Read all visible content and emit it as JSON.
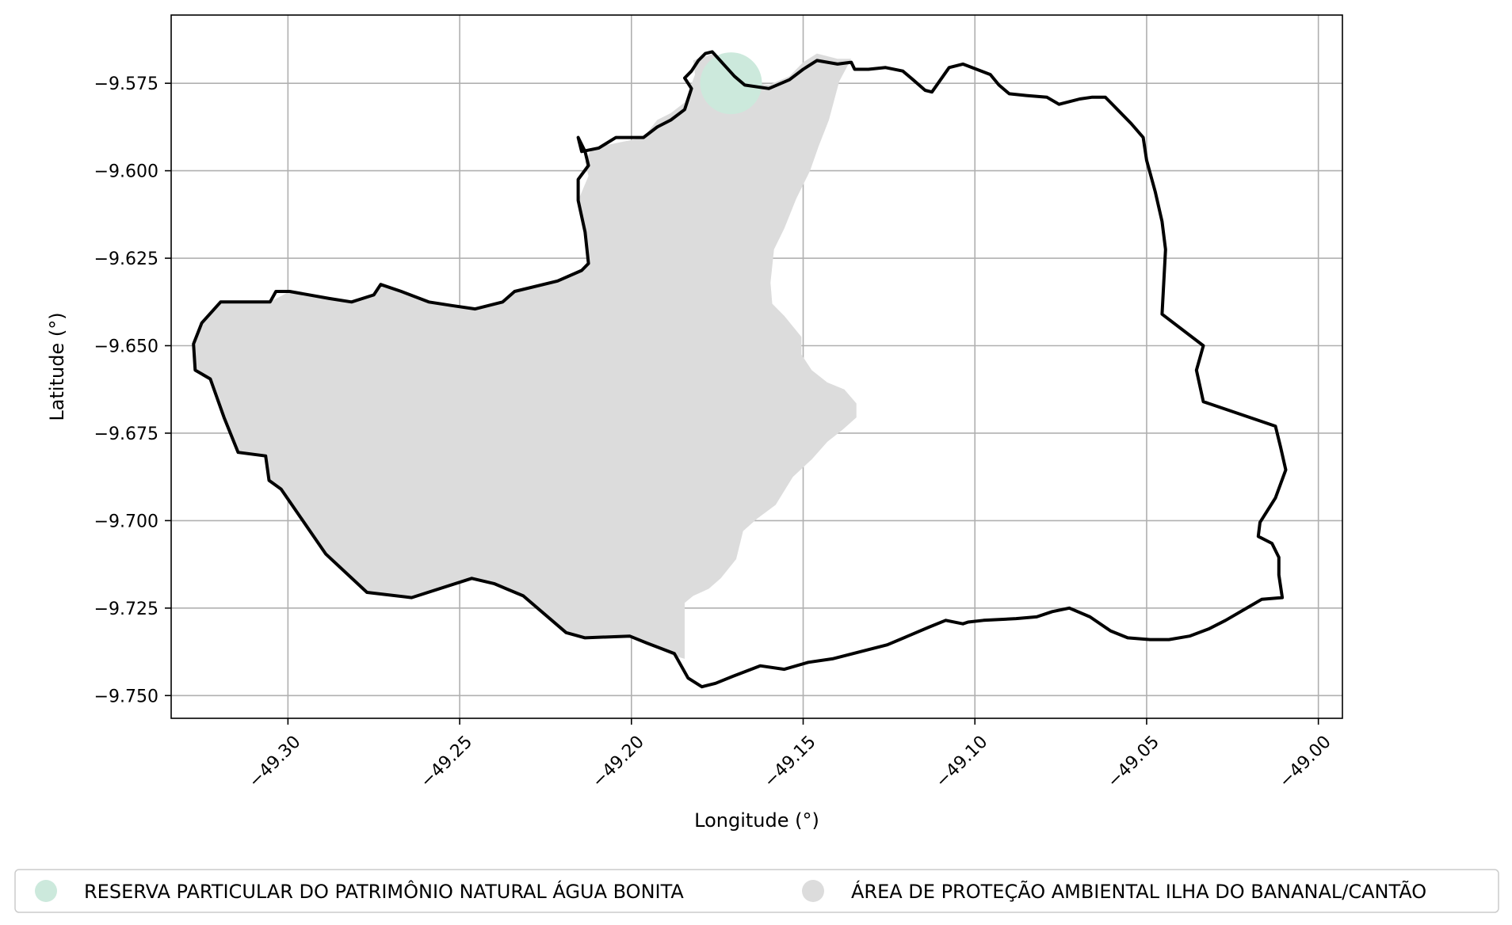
{
  "chart_data": {
    "type": "map",
    "xlabel": "Longitude (°)",
    "ylabel": "Latitude (°)",
    "xlim": [
      -49.334,
      -48.993
    ],
    "ylim": [
      -9.7565,
      -9.5555
    ],
    "grid": true,
    "xticks": [
      {
        "value": -49.3,
        "label": "−49.30"
      },
      {
        "value": -49.25,
        "label": "−49.25"
      },
      {
        "value": -49.2,
        "label": "−49.20"
      },
      {
        "value": -49.15,
        "label": "−49.15"
      },
      {
        "value": -49.1,
        "label": "−49.10"
      },
      {
        "value": -49.05,
        "label": "−49.05"
      },
      {
        "value": -49.0,
        "label": "−49.00"
      }
    ],
    "yticks": [
      {
        "value": -9.575,
        "label": "−9.575"
      },
      {
        "value": -9.6,
        "label": "−9.600"
      },
      {
        "value": -9.625,
        "label": "−9.625"
      },
      {
        "value": -9.65,
        "label": "−9.650"
      },
      {
        "value": -9.675,
        "label": "−9.675"
      },
      {
        "value": -9.7,
        "label": "−9.700"
      },
      {
        "value": -9.725,
        "label": "−9.725"
      },
      {
        "value": -9.75,
        "label": "−9.750"
      }
    ],
    "legend_position": "bottom",
    "layers": [
      {
        "name": "RESERVA PARTICULAR DO PATRIMÔNIO NATURAL ÁGUA BONITA",
        "kind": "point",
        "color": "#cce9dc",
        "center": [
          -49.171,
          -9.575
        ],
        "radius_deg": 0.009
      },
      {
        "name": "ÁREA DE PROTEÇÃO AMBIENTAL ILHA DO BANANAL/CANTÃO",
        "kind": "area",
        "color": "#dcdcdc",
        "coords": [
          [
            -49.176,
            -9.5665
          ],
          [
            -49.167,
            -9.5745
          ],
          [
            -49.16,
            -9.5755
          ],
          [
            -49.154,
            -9.573
          ],
          [
            -49.15,
            -9.569
          ],
          [
            -49.146,
            -9.5665
          ],
          [
            -49.14,
            -9.568
          ],
          [
            -49.136,
            -9.568
          ],
          [
            -49.1395,
            -9.5745
          ],
          [
            -49.1425,
            -9.5855
          ],
          [
            -49.1455,
            -9.593
          ],
          [
            -49.148,
            -9.6
          ],
          [
            -49.152,
            -9.608
          ],
          [
            -49.1555,
            -9.6165
          ],
          [
            -49.1585,
            -9.6225
          ],
          [
            -49.1595,
            -9.632
          ],
          [
            -49.159,
            -9.638
          ],
          [
            -49.1555,
            -9.6415
          ],
          [
            -49.1505,
            -9.6475
          ],
          [
            -49.1505,
            -9.6525
          ],
          [
            -49.1475,
            -9.657
          ],
          [
            -49.143,
            -9.6605
          ],
          [
            -49.138,
            -9.6625
          ],
          [
            -49.1345,
            -9.6665
          ],
          [
            -49.1345,
            -9.6705
          ],
          [
            -49.1385,
            -9.674
          ],
          [
            -49.143,
            -9.6775
          ],
          [
            -49.1475,
            -9.6825
          ],
          [
            -49.153,
            -9.6875
          ],
          [
            -49.158,
            -9.6955
          ],
          [
            -49.1635,
            -9.6995
          ],
          [
            -49.1675,
            -9.703
          ],
          [
            -49.1695,
            -9.711
          ],
          [
            -49.174,
            -9.7165
          ],
          [
            -49.1775,
            -9.7195
          ],
          [
            -49.182,
            -9.7215
          ],
          [
            -49.1845,
            -9.7235
          ],
          [
            -49.1845,
            -9.7295
          ],
          [
            -49.1845,
            -9.7395
          ],
          [
            -49.188,
            -9.7385
          ],
          [
            -49.2005,
            -9.733
          ],
          [
            -49.2135,
            -9.7335
          ],
          [
            -49.219,
            -9.732
          ],
          [
            -49.2315,
            -9.7215
          ],
          [
            -49.24,
            -9.718
          ],
          [
            -49.2465,
            -9.7165
          ],
          [
            -49.264,
            -9.722
          ],
          [
            -49.277,
            -9.7205
          ],
          [
            -49.289,
            -9.7095
          ],
          [
            -49.302,
            -9.691
          ],
          [
            -49.3055,
            -9.6885
          ],
          [
            -49.3065,
            -9.6815
          ],
          [
            -49.3145,
            -9.6805
          ],
          [
            -49.3186,
            -9.6705
          ],
          [
            -49.3226,
            -9.6595
          ],
          [
            -49.327,
            -9.657
          ],
          [
            -49.3275,
            -9.6495
          ],
          [
            -49.3251,
            -9.6435
          ],
          [
            -49.3196,
            -9.6375
          ],
          [
            -49.3052,
            -9.6375
          ],
          [
            -49.2995,
            -9.6345
          ],
          [
            -49.288,
            -9.6365
          ],
          [
            -49.2815,
            -9.6375
          ],
          [
            -49.275,
            -9.6355
          ],
          [
            -49.273,
            -9.6325
          ],
          [
            -49.267,
            -9.6345
          ],
          [
            -49.259,
            -9.6375
          ],
          [
            -49.2525,
            -9.6385
          ],
          [
            -49.2455,
            -9.6395
          ],
          [
            -49.2375,
            -9.6375
          ],
          [
            -49.234,
            -9.6345
          ],
          [
            -49.2215,
            -9.6315
          ],
          [
            -49.2145,
            -9.6285
          ],
          [
            -49.2125,
            -9.6265
          ],
          [
            -49.2135,
            -9.6175
          ],
          [
            -49.2155,
            -9.6085
          ],
          [
            -49.2125,
            -9.6015
          ],
          [
            -49.2135,
            -9.5975
          ],
          [
            -49.2115,
            -9.5935
          ],
          [
            -49.1965,
            -9.5905
          ],
          [
            -49.1925,
            -9.5855
          ],
          [
            -49.1885,
            -9.5835
          ],
          [
            -49.1845,
            -9.5805
          ],
          [
            -49.1815,
            -9.5725
          ],
          [
            -49.182,
            -9.5685
          ]
        ]
      }
    ],
    "boundary": {
      "kind": "outline",
      "color": "#000000",
      "coords": [
        [
          -49.176,
          -9.5665
        ],
        [
          -49.17,
          -9.573
        ],
        [
          -49.167,
          -9.5755
        ],
        [
          -49.16,
          -9.5765
        ],
        [
          -49.154,
          -9.574
        ],
        [
          -49.15,
          -9.571
        ],
        [
          -49.146,
          -9.5685
        ],
        [
          -49.14,
          -9.5695
        ],
        [
          -49.136,
          -9.569
        ],
        [
          -49.135,
          -9.571
        ],
        [
          -49.131,
          -9.571
        ],
        [
          -49.126,
          -9.5705
        ],
        [
          -49.121,
          -9.5715
        ],
        [
          -49.118,
          -9.574
        ],
        [
          -49.1145,
          -9.577
        ],
        [
          -49.1125,
          -9.5775
        ],
        [
          -49.1075,
          -9.5705
        ],
        [
          -49.1035,
          -9.5695
        ],
        [
          -49.0995,
          -9.571
        ],
        [
          -49.0955,
          -9.5725
        ],
        [
          -49.093,
          -9.5755
        ],
        [
          -49.09,
          -9.578
        ],
        [
          -49.085,
          -9.5785
        ],
        [
          -49.079,
          -9.579
        ],
        [
          -49.0755,
          -9.581
        ],
        [
          -49.0695,
          -9.5795
        ],
        [
          -49.066,
          -9.579
        ],
        [
          -49.062,
          -9.579
        ],
        [
          -49.0585,
          -9.5825
        ],
        [
          -49.0545,
          -9.5865
        ],
        [
          -49.051,
          -9.5905
        ],
        [
          -49.05,
          -9.597
        ],
        [
          -49.0475,
          -9.606
        ],
        [
          -49.0455,
          -9.6145
        ],
        [
          -49.0445,
          -9.6225
        ],
        [
          -49.0455,
          -9.641
        ],
        [
          -49.0335,
          -9.65
        ],
        [
          -49.0355,
          -9.657
        ],
        [
          -49.0335,
          -9.666
        ],
        [
          -49.0125,
          -9.673
        ],
        [
          -49.011,
          -9.679
        ],
        [
          -49.0095,
          -9.6855
        ],
        [
          -49.0125,
          -9.6935
        ],
        [
          -49.017,
          -9.7005
        ],
        [
          -49.0175,
          -9.7045
        ],
        [
          -49.0135,
          -9.7065
        ],
        [
          -49.0115,
          -9.7105
        ],
        [
          -49.0115,
          -9.7155
        ],
        [
          -49.0105,
          -9.722
        ],
        [
          -49.0165,
          -9.7225
        ],
        [
          -49.02,
          -9.7245
        ],
        [
          -49.027,
          -9.7285
        ],
        [
          -49.032,
          -9.731
        ],
        [
          -49.0375,
          -9.733
        ],
        [
          -49.0435,
          -9.734
        ],
        [
          -49.049,
          -9.734
        ],
        [
          -49.0555,
          -9.7335
        ],
        [
          -49.0605,
          -9.7315
        ],
        [
          -49.0665,
          -9.7275
        ],
        [
          -49.0725,
          -9.725
        ],
        [
          -49.0775,
          -9.726
        ],
        [
          -49.082,
          -9.7275
        ],
        [
          -49.088,
          -9.728
        ],
        [
          -49.0975,
          -9.7285
        ],
        [
          -49.102,
          -9.729
        ],
        [
          -49.1035,
          -9.7295
        ],
        [
          -49.1085,
          -9.7285
        ],
        [
          -49.1135,
          -9.7305
        ],
        [
          -49.1195,
          -9.733
        ],
        [
          -49.1255,
          -9.7355
        ],
        [
          -49.1335,
          -9.7375
        ],
        [
          -49.1415,
          -9.7395
        ],
        [
          -49.1485,
          -9.7405
        ],
        [
          -49.1555,
          -9.7425
        ],
        [
          -49.1625,
          -9.7415
        ],
        [
          -49.1705,
          -9.7445
        ],
        [
          -49.1755,
          -9.7465
        ],
        [
          -49.1795,
          -9.7475
        ],
        [
          -49.1835,
          -9.745
        ],
        [
          -49.1875,
          -9.738
        ],
        [
          -49.1955,
          -9.735
        ],
        [
          -49.2005,
          -9.733
        ],
        [
          -49.2135,
          -9.7335
        ],
        [
          -49.219,
          -9.732
        ],
        [
          -49.2315,
          -9.7215
        ],
        [
          -49.24,
          -9.718
        ],
        [
          -49.2465,
          -9.7165
        ],
        [
          -49.264,
          -9.722
        ],
        [
          -49.277,
          -9.7205
        ],
        [
          -49.289,
          -9.7095
        ],
        [
          -49.302,
          -9.691
        ],
        [
          -49.3055,
          -9.6885
        ],
        [
          -49.3065,
          -9.6815
        ],
        [
          -49.3145,
          -9.6805
        ],
        [
          -49.3186,
          -9.6705
        ],
        [
          -49.3226,
          -9.6595
        ],
        [
          -49.327,
          -9.657
        ],
        [
          -49.3275,
          -9.6495
        ],
        [
          -49.3251,
          -9.6435
        ],
        [
          -49.3196,
          -9.6375
        ],
        [
          -49.3052,
          -9.6375
        ],
        [
          -49.3035,
          -9.6345
        ],
        [
          -49.2995,
          -9.6345
        ],
        [
          -49.288,
          -9.6365
        ],
        [
          -49.2815,
          -9.6375
        ],
        [
          -49.275,
          -9.6355
        ],
        [
          -49.273,
          -9.6325
        ],
        [
          -49.267,
          -9.6345
        ],
        [
          -49.259,
          -9.6375
        ],
        [
          -49.2525,
          -9.6385
        ],
        [
          -49.2455,
          -9.6395
        ],
        [
          -49.2375,
          -9.6375
        ],
        [
          -49.234,
          -9.6345
        ],
        [
          -49.2215,
          -9.6315
        ],
        [
          -49.2145,
          -9.6285
        ],
        [
          -49.2125,
          -9.6265
        ],
        [
          -49.2135,
          -9.6175
        ],
        [
          -49.2155,
          -9.6085
        ],
        [
          -49.2155,
          -9.6025
        ],
        [
          -49.2125,
          -9.5985
        ],
        [
          -49.2135,
          -9.5945
        ],
        [
          -49.2155,
          -9.5905
        ],
        [
          -49.2145,
          -9.5945
        ],
        [
          -49.2095,
          -9.5935
        ],
        [
          -49.2045,
          -9.5905
        ],
        [
          -49.1965,
          -9.5905
        ],
        [
          -49.1925,
          -9.5875
        ],
        [
          -49.1885,
          -9.5855
        ],
        [
          -49.1845,
          -9.5825
        ],
        [
          -49.1825,
          -9.5765
        ],
        [
          -49.1845,
          -9.5735
        ],
        [
          -49.1825,
          -9.5715
        ],
        [
          -49.1805,
          -9.5685
        ],
        [
          -49.1785,
          -9.5665
        ],
        [
          -49.1765,
          -9.566
        ]
      ]
    }
  }
}
